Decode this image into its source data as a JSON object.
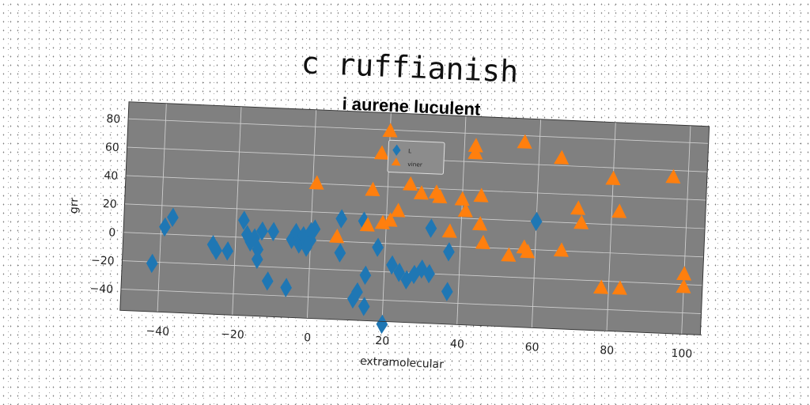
{
  "chart_data": {
    "type": "scatter",
    "title": "c ruffianish",
    "subtitle": "i aurene luculent",
    "xlabel": "extramolecular",
    "ylabel": "grr",
    "xlim": [
      -50,
      105
    ],
    "ylim": [
      -55,
      92
    ],
    "xticks": [
      -40,
      -20,
      0,
      20,
      40,
      60,
      80,
      100
    ],
    "yticks": [
      -40,
      -20,
      0,
      20,
      40,
      60,
      80
    ],
    "grid": true,
    "legend_position": "top-center",
    "background_color": "#808080",
    "series": [
      {
        "name": "L",
        "marker": "diamond",
        "color": "#1f77b4",
        "x": [
          -42,
          -39,
          -37,
          -26,
          -25,
          -22,
          -18,
          -17,
          -16,
          -15,
          -14,
          -14,
          -13,
          -11,
          -10,
          -6,
          -5,
          -4,
          -3,
          -2,
          -1,
          0,
          0,
          1,
          8,
          8,
          12,
          13,
          14,
          15,
          15,
          18,
          20,
          22,
          24,
          26,
          28,
          30,
          32,
          32,
          37,
          37,
          60
        ],
        "y": [
          -21,
          5,
          12,
          -6,
          -10,
          -10,
          12,
          2,
          -3,
          0,
          -15,
          -8,
          5,
          -30,
          5,
          -34,
          0,
          5,
          -3,
          3,
          -5,
          0,
          6,
          8,
          -8,
          16,
          -40,
          -35,
          15,
          -45,
          -23,
          -3,
          -57,
          -15,
          -20,
          -25,
          -21,
          -17,
          -20,
          12,
          -32,
          -4,
          20
        ]
      },
      {
        "name": "viner",
        "marker": "triangle",
        "color": "#ff7f0e",
        "x": [
          1,
          7,
          15,
          16,
          18,
          19,
          20,
          21,
          23,
          26,
          28,
          29,
          33,
          34,
          37,
          40,
          41,
          43,
          43,
          45,
          45,
          46,
          53,
          56,
          57,
          58,
          66,
          67,
          71,
          72,
          78,
          80,
          82,
          83,
          96,
          100,
          100
        ],
        "y": [
          40,
          3,
          12,
          37,
          63,
          14,
          79,
          16,
          23,
          42,
          55,
          36,
          37,
          34,
          10,
          33,
          25,
          71,
          66,
          36,
          16,
          3,
          -5,
          75,
          1,
          -2,
          65,
          0,
          30,
          20,
          -25,
          52,
          29,
          -25,
          55,
          -13,
          -22
        ]
      }
    ]
  }
}
